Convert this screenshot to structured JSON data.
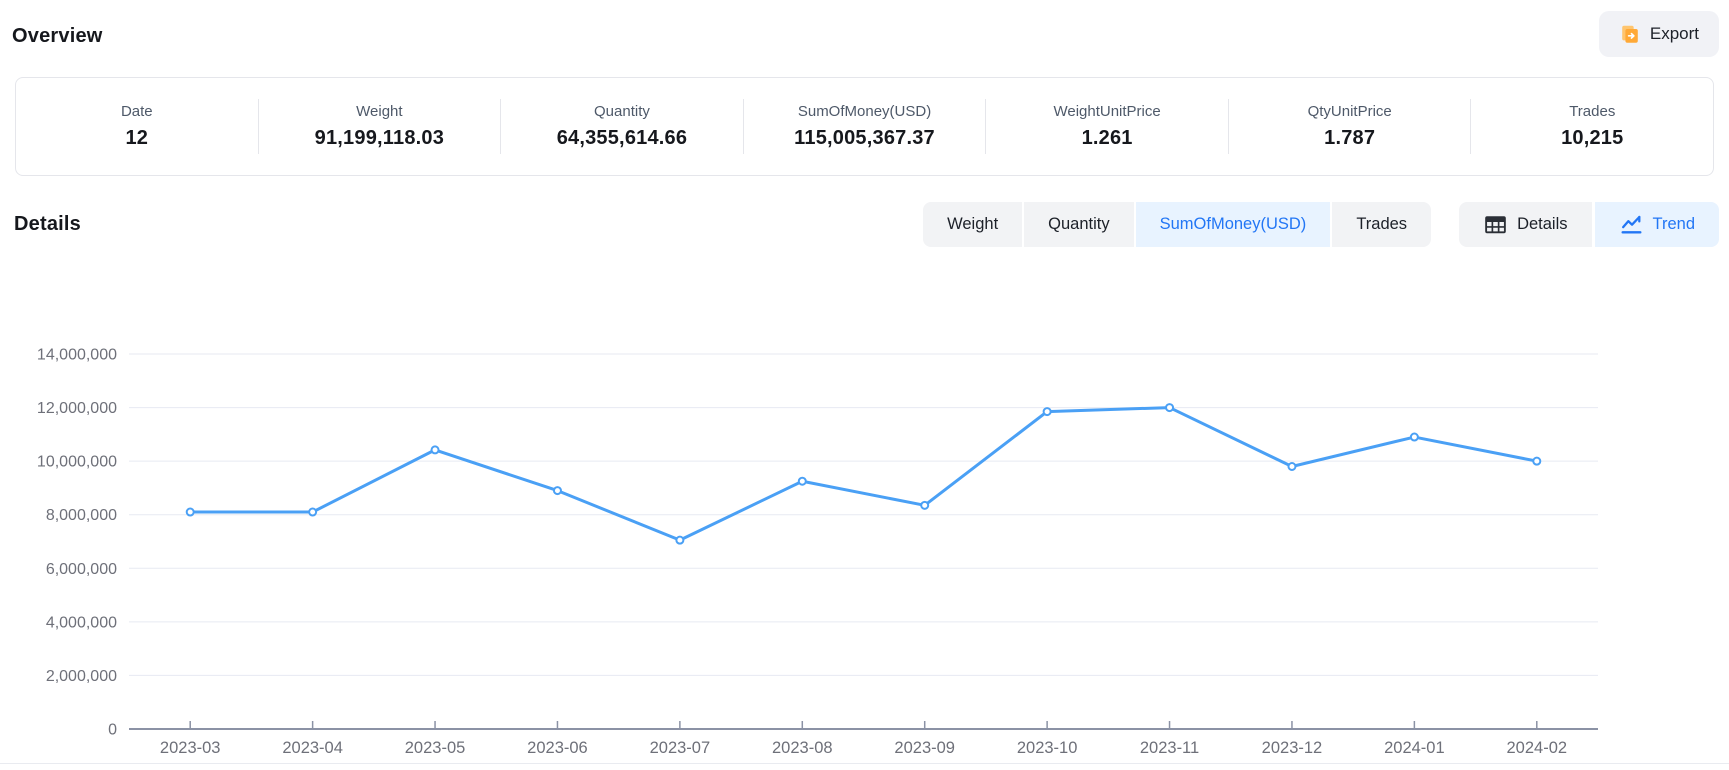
{
  "header": {
    "title": "Overview",
    "export_label": "Export"
  },
  "overview_stats": [
    {
      "label": "Date",
      "value": "12"
    },
    {
      "label": "Weight",
      "value": "91,199,118.03"
    },
    {
      "label": "Quantity",
      "value": "64,355,614.66"
    },
    {
      "label": "SumOfMoney(USD)",
      "value": "115,005,367.37"
    },
    {
      "label": "WeightUnitPrice",
      "value": "1.261"
    },
    {
      "label": "QtyUnitPrice",
      "value": "1.787"
    },
    {
      "label": "Trades",
      "value": "10,215"
    }
  ],
  "details": {
    "title": "Details",
    "metric_tabs": [
      {
        "label": "Weight",
        "active": false
      },
      {
        "label": "Quantity",
        "active": false
      },
      {
        "label": "SumOfMoney(USD)",
        "active": true
      },
      {
        "label": "Trades",
        "active": false
      }
    ],
    "view_tabs": [
      {
        "label": "Details",
        "icon": "table-icon",
        "active": false
      },
      {
        "label": "Trend",
        "icon": "trend-icon",
        "active": true
      }
    ]
  },
  "colors": {
    "accent_blue": "#2276f5",
    "active_tab_bg": "#e8f3ff",
    "inactive_tab_bg": "#f2f3f5",
    "line_blue": "#4aa0f5",
    "grid_line": "#e7eaf2",
    "axis_line": "#8b92a5",
    "axis_label": "#6e7079",
    "export_icon_orange": "#ffa937"
  },
  "chart_data": {
    "type": "line",
    "title": "",
    "xlabel": "",
    "ylabel": "",
    "x": [
      "2023-03",
      "2023-04",
      "2023-05",
      "2023-06",
      "2023-07",
      "2023-08",
      "2023-09",
      "2023-10",
      "2023-11",
      "2023-12",
      "2024-01",
      "2024-02"
    ],
    "series": [
      {
        "name": "SumOfMoney(USD)",
        "values": [
          8100000,
          8100000,
          10420000,
          8900000,
          7050000,
          9250000,
          8350000,
          11850000,
          12000000,
          9800000,
          10900000,
          10000000
        ]
      }
    ],
    "ylim": [
      0,
      14000000
    ],
    "y_tick_step": 2000000,
    "grid": true,
    "legend": "none",
    "marker": "hollow-circle"
  }
}
